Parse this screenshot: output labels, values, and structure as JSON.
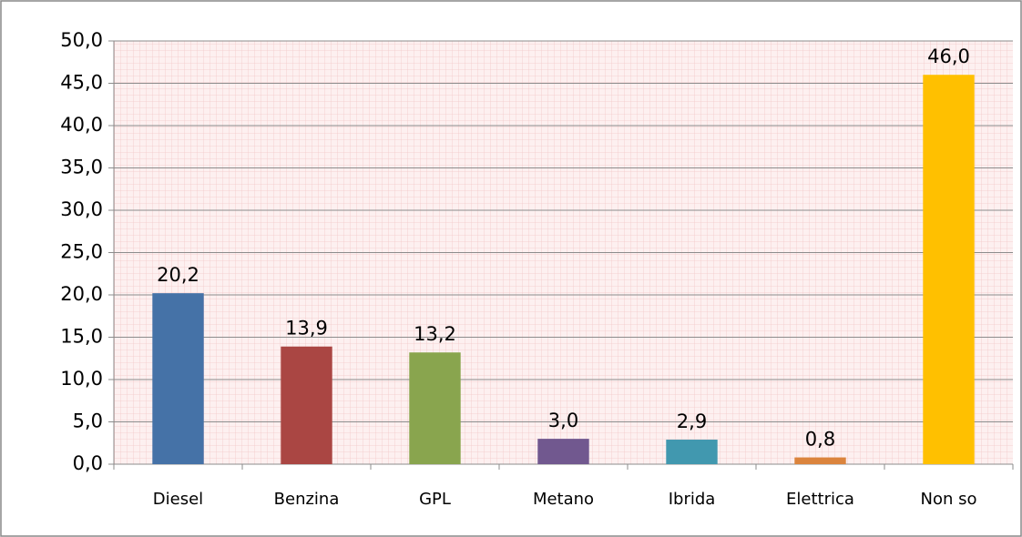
{
  "chart_data": {
    "type": "bar",
    "categories": [
      "Diesel",
      "Benzina",
      "GPL",
      "Metano",
      "Ibrida",
      "Elettrica",
      "Non so"
    ],
    "values": [
      20.2,
      13.9,
      13.2,
      3.0,
      2.9,
      0.8,
      46.0
    ],
    "value_labels": [
      "20,2",
      "13,9",
      "13,2",
      "3,0",
      "2,9",
      "0,8",
      "46,0"
    ],
    "colors": [
      "#4572a7",
      "#aa4643",
      "#89a54e",
      "#71588f",
      "#4198af",
      "#db843d",
      "#ffc000"
    ],
    "ylim": [
      0,
      50
    ],
    "yticks": [
      {
        "value": 0,
        "label": "0,0"
      },
      {
        "value": 5,
        "label": "5,0"
      },
      {
        "value": 10,
        "label": "10,0"
      },
      {
        "value": 15,
        "label": "15,0"
      },
      {
        "value": 20,
        "label": "20,0"
      },
      {
        "value": 25,
        "label": "25,0"
      },
      {
        "value": 30,
        "label": "30,0"
      },
      {
        "value": 35,
        "label": "35,0"
      },
      {
        "value": 40,
        "label": "40,0"
      },
      {
        "value": 45,
        "label": "45,0"
      },
      {
        "value": 50,
        "label": "50,0"
      }
    ],
    "grid": true
  }
}
